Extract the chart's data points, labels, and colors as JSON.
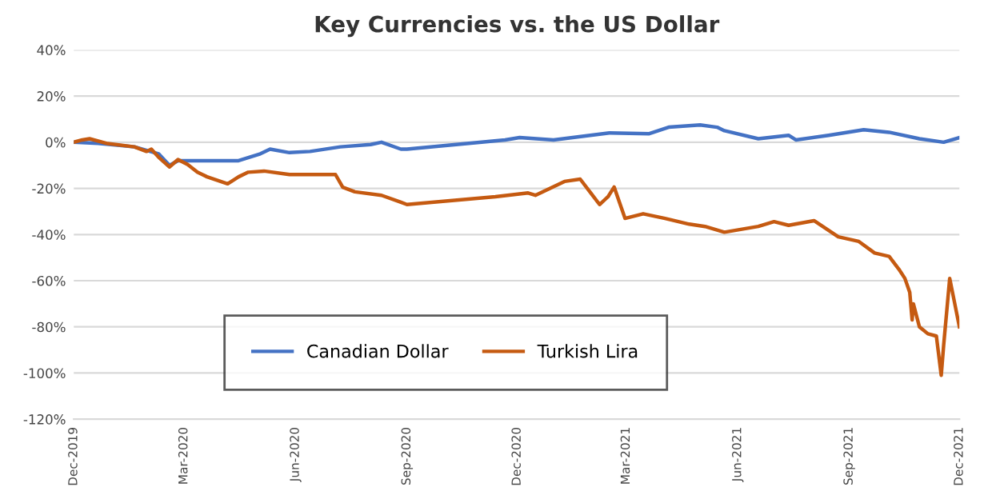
{
  "chart_data": {
    "type": "line",
    "title": "Key Currencies vs. the US Dollar",
    "series": [
      {
        "name": "Canadian Dollar",
        "color": "#4472c4",
        "x": [
          "2019-12-01",
          "2019-12-21",
          "2020-01-20",
          "2020-02-09",
          "2020-02-18",
          "2020-02-25",
          "2020-03-04",
          "2020-03-25",
          "2020-04-15",
          "2020-05-03",
          "2020-05-11",
          "2020-05-27",
          "2020-06-13",
          "2020-07-08",
          "2020-08-02",
          "2020-08-11",
          "2020-08-27",
          "2020-09-01",
          "2020-11-21",
          "2020-12-03",
          "2020-12-31",
          "2021-02-15",
          "2021-03-20",
          "2021-04-05",
          "2021-05-01",
          "2021-05-15",
          "2021-05-21",
          "2021-06-18",
          "2021-07-13",
          "2021-07-19",
          "2021-08-15",
          "2021-09-13",
          "2021-10-04",
          "2021-10-29",
          "2021-11-18",
          "2021-12-01"
        ],
        "values": [
          0,
          -0.5,
          -2,
          -5,
          -10,
          -8,
          -8,
          -8,
          -8,
          -5,
          -3,
          -4.5,
          -4,
          -2,
          -1,
          0,
          -3,
          -3,
          1,
          2,
          1,
          4,
          3.7,
          6.5,
          7.5,
          6.5,
          5,
          1.5,
          3,
          1,
          3,
          5.4,
          4.3,
          1.5,
          0,
          2
        ]
      },
      {
        "name": "Turkish Lira",
        "color": "#c55a11",
        "x": [
          "2019-12-01",
          "2019-12-08",
          "2019-12-14",
          "2019-12-29",
          "2020-01-20",
          "2020-01-30",
          "2020-02-03",
          "2020-02-09",
          "2020-02-18",
          "2020-02-25",
          "2020-03-04",
          "2020-03-12",
          "2020-03-20",
          "2020-04-06",
          "2020-04-15",
          "2020-04-23",
          "2020-05-06",
          "2020-05-27",
          "2020-07-04",
          "2020-07-10",
          "2020-07-20",
          "2020-08-11",
          "2020-08-27",
          "2020-09-01",
          "2020-11-13",
          "2020-12-10",
          "2020-12-16",
          "2021-01-09",
          "2021-01-22",
          "2021-01-30",
          "2021-02-07",
          "2021-02-14",
          "2021-02-19",
          "2021-02-28",
          "2021-03-15",
          "2021-04-02",
          "2021-04-22",
          "2021-05-05",
          "2021-05-21",
          "2021-06-18",
          "2021-07-01",
          "2021-07-13",
          "2021-08-03",
          "2021-08-23",
          "2021-09-09",
          "2021-09-22",
          "2021-10-04",
          "2021-10-12",
          "2021-10-17",
          "2021-10-21",
          "2021-10-23",
          "2021-10-24",
          "2021-10-29",
          "2021-11-05",
          "2021-11-12",
          "2021-11-16",
          "2021-11-18",
          "2021-11-23",
          "2021-12-01"
        ],
        "values": [
          0,
          1,
          1.5,
          -0.6,
          -2,
          -4,
          -3,
          -6.5,
          -10.7,
          -7.5,
          -9.7,
          -13,
          -15,
          -18,
          -15,
          -13,
          -12.5,
          -14,
          -14,
          -19.5,
          -21.5,
          -23,
          -26,
          -27,
          -23.6,
          -22,
          -23,
          -17,
          -16,
          -21.5,
          -27,
          -23.6,
          -19.4,
          -33,
          -31,
          -33,
          -35.5,
          -36.5,
          -39,
          -36.5,
          -34.4,
          -36,
          -34,
          -41,
          -43,
          -48,
          -49.5,
          -55,
          -59,
          -65,
          -77,
          -70,
          -80,
          -83,
          -84,
          -101,
          -88,
          -59,
          -80
        ]
      }
    ],
    "xlim": [
      "2019-12-01",
      "2021-12-01"
    ],
    "xticks": [
      {
        "value": "2019-12-01",
        "label": "Dec-2019"
      },
      {
        "value": "2020-03-01",
        "label": "Mar-2020"
      },
      {
        "value": "2020-06-01",
        "label": "Jun-2020"
      },
      {
        "value": "2020-09-01",
        "label": "Sep-2020"
      },
      {
        "value": "2020-12-01",
        "label": "Dec-2020"
      },
      {
        "value": "2021-03-01",
        "label": "Mar-2021"
      },
      {
        "value": "2021-06-01",
        "label": "Jun-2021"
      },
      {
        "value": "2021-09-01",
        "label": "Sep-2021"
      },
      {
        "value": "2021-12-01",
        "label": "Dec-2021"
      }
    ],
    "ylim": [
      -120,
      40
    ],
    "yticks": [
      {
        "value": -120,
        "label": "-120%"
      },
      {
        "value": -100,
        "label": "-100%"
      },
      {
        "value": -80,
        "label": "-80%"
      },
      {
        "value": -60,
        "label": "-60%"
      },
      {
        "value": -40,
        "label": "-40%"
      },
      {
        "value": -20,
        "label": "-20%"
      },
      {
        "value": 0,
        "label": "0%"
      },
      {
        "value": 20,
        "label": "20%"
      },
      {
        "value": 40,
        "label": "40%"
      }
    ],
    "grid": "y",
    "legend": "bottom",
    "marker": "none",
    "line_style": "solid"
  }
}
